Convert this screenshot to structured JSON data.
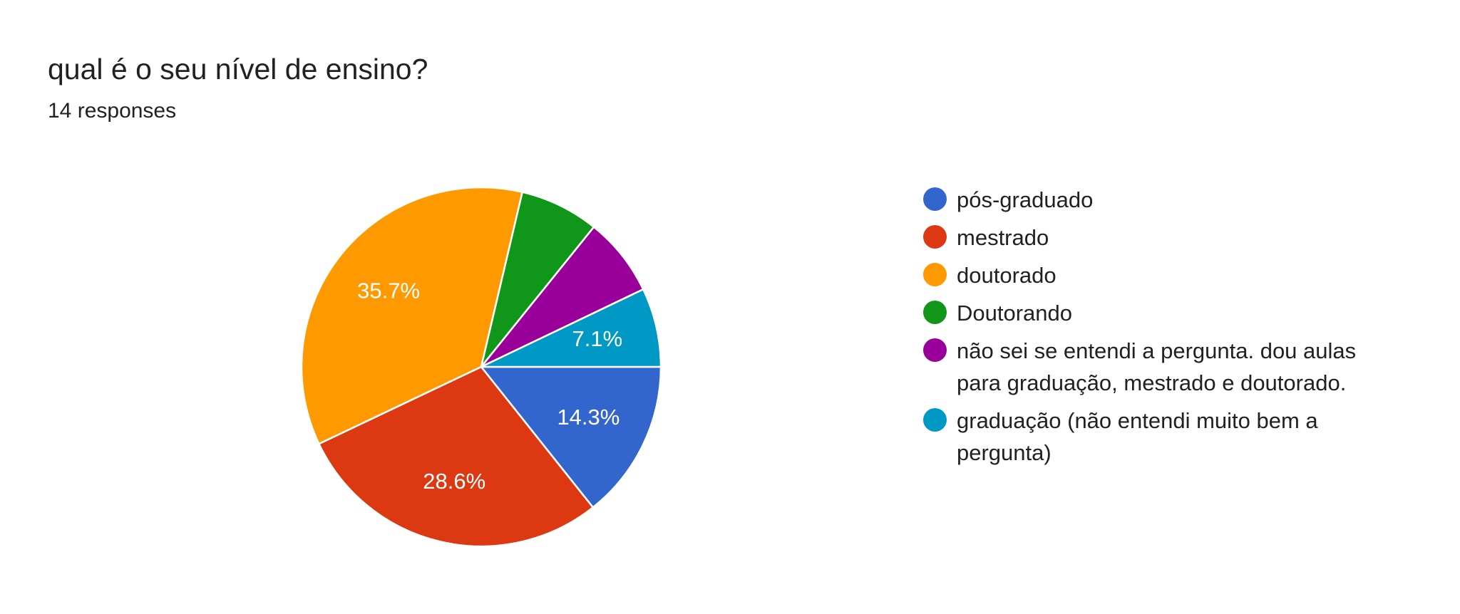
{
  "header": {
    "title": "qual é o seu nível de ensino?",
    "subtitle": "14 responses"
  },
  "chart_data": {
    "type": "pie",
    "title": "qual é o seu nível de ensino?",
    "subtitle": "14 responses",
    "legend_position": "right",
    "slices": [
      {
        "name": "pós-graduado",
        "value": 14.3,
        "color": "#3366cc",
        "label": "14.3%"
      },
      {
        "name": "mestrado",
        "value": 28.6,
        "color": "#dc3912",
        "label": "28.6%"
      },
      {
        "name": "doutorado",
        "value": 35.7,
        "color": "#ff9900",
        "label": "35.7%"
      },
      {
        "name": "Doutorando",
        "value": 7.1,
        "color": "#109618",
        "label": ""
      },
      {
        "name": "não sei se entendi a pergunta. dou aulas para graduação, mestrado e doutorado.",
        "value": 7.1,
        "color": "#990099",
        "label": ""
      },
      {
        "name": "graduação (não entendi muito bem a pergunta)",
        "value": 7.1,
        "color": "#0099c6",
        "label": "7.1%"
      }
    ]
  }
}
